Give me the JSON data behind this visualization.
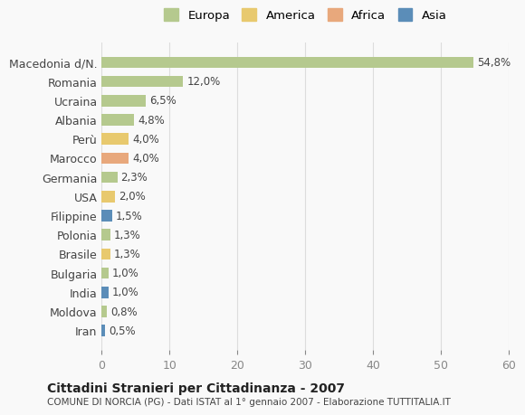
{
  "categories": [
    "Macedonia d/N.",
    "Romania",
    "Ucraina",
    "Albania",
    "Perù",
    "Marocco",
    "Germania",
    "USA",
    "Filippine",
    "Polonia",
    "Brasile",
    "Bulgaria",
    "India",
    "Moldova",
    "Iran"
  ],
  "values": [
    54.8,
    12.0,
    6.5,
    4.8,
    4.0,
    4.0,
    2.3,
    2.0,
    1.5,
    1.3,
    1.3,
    1.0,
    1.0,
    0.8,
    0.5
  ],
  "labels": [
    "54,8%",
    "12,0%",
    "6,5%",
    "4,8%",
    "4,0%",
    "4,0%",
    "2,3%",
    "2,0%",
    "1,5%",
    "1,3%",
    "1,3%",
    "1,0%",
    "1,0%",
    "0,8%",
    "0,5%"
  ],
  "continents": [
    "Europa",
    "Europa",
    "Europa",
    "Europa",
    "America",
    "Africa",
    "Europa",
    "America",
    "Asia",
    "Europa",
    "America",
    "Europa",
    "Asia",
    "Europa",
    "Asia"
  ],
  "continent_colors": {
    "Europa": "#b5c98e",
    "America": "#e8c96e",
    "Africa": "#e8a87c",
    "Asia": "#5b8db8"
  },
  "legend_order": [
    "Europa",
    "America",
    "Africa",
    "Asia"
  ],
  "legend_colors": [
    "#b5c98e",
    "#e8c96e",
    "#e8a87c",
    "#5b8db8"
  ],
  "title": "Cittadini Stranieri per Cittadinanza - 2007",
  "subtitle": "COMUNE DI NORCIA (PG) - Dati ISTAT al 1° gennaio 2007 - Elaborazione TUTTITALIA.IT",
  "xlim": [
    0,
    60
  ],
  "xticks": [
    0,
    10,
    20,
    30,
    40,
    50,
    60
  ],
  "background_color": "#f9f9f9",
  "grid_color": "#dddddd",
  "bar_height": 0.6
}
